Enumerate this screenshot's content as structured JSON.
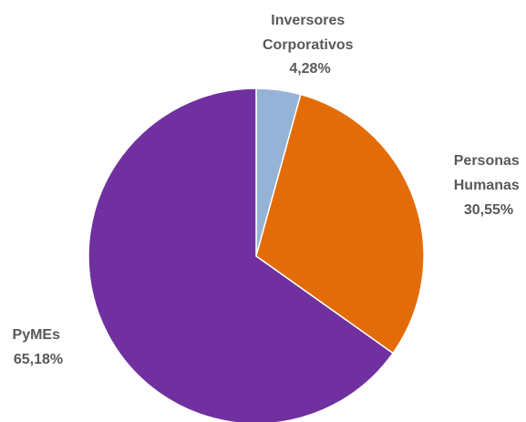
{
  "chart_data": {
    "type": "pie",
    "title": "",
    "slices": [
      {
        "name_lines": [
          "Inversores",
          "Corporativos"
        ],
        "value_label": "4,28%",
        "value": 4.28,
        "color": "#95b3d7"
      },
      {
        "name_lines": [
          "Personas",
          "Humanas"
        ],
        "value_label": "30,55%",
        "value": 30.55,
        "color": "#e36c09"
      },
      {
        "name_lines": [
          "PyMEs"
        ],
        "value_label": "65,18%",
        "value": 65.18,
        "color": "#7030a0"
      }
    ],
    "start_angle_deg": 0,
    "direction": "clockwise",
    "legend": "none",
    "slice_border_color": "#ffffff"
  }
}
